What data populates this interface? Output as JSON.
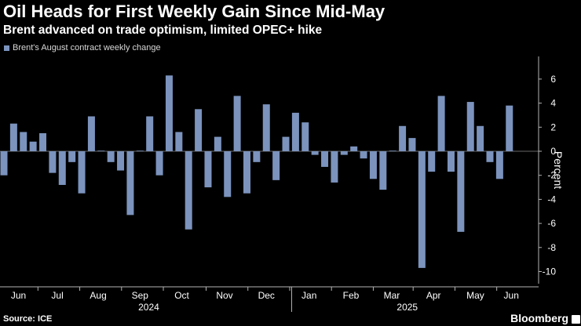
{
  "chart_data": {
    "type": "bar",
    "title": "Oil Heads for First Weekly Gain Since Mid-May",
    "subtitle": "Brent advanced on trade optimism, limited OPEC+ hike",
    "series": [
      {
        "name": "Brent's August contract weekly change",
        "color": "#7b93bd",
        "values": [
          -2.0,
          2.3,
          1.6,
          0.8,
          1.5,
          -1.8,
          -2.8,
          -0.9,
          -3.5,
          2.9,
          0.05,
          -0.9,
          -1.6,
          -5.3,
          0.05,
          2.9,
          -2.0,
          6.3,
          1.6,
          -6.5,
          3.5,
          -3.0,
          1.2,
          -3.8,
          4.6,
          -3.5,
          -0.9,
          3.9,
          -2.4,
          1.2,
          3.2,
          2.4,
          -0.3,
          -1.3,
          -2.6,
          -0.3,
          0.4,
          -0.6,
          -2.3,
          -3.2,
          0.05,
          2.1,
          1.1,
          -9.7,
          -1.7,
          4.6,
          -1.7,
          -6.7,
          4.1,
          2.1,
          -0.9,
          -2.3,
          3.8
        ]
      }
    ],
    "xlabel": "",
    "ylabel": "Percent",
    "ylim": [
      -11,
      8
    ],
    "yticks": [
      "6",
      "4",
      "2",
      "0",
      "-2",
      "-4",
      "-6",
      "-8",
      "-10"
    ],
    "ytick_values": [
      6,
      4,
      2,
      0,
      -2,
      -4,
      -6,
      -8,
      -10
    ],
    "month_labels": [
      {
        "label": "Jun",
        "week": 1.5
      },
      {
        "label": "Jul",
        "week": 5.5
      },
      {
        "label": "Aug",
        "week": 9.7
      },
      {
        "label": "Sep",
        "week": 14.0
      },
      {
        "label": "Oct",
        "week": 18.3
      },
      {
        "label": "Nov",
        "week": 22.7
      },
      {
        "label": "Dec",
        "week": 27.0
      },
      {
        "label": "Jan",
        "week": 31.4
      },
      {
        "label": "Feb",
        "week": 35.7
      },
      {
        "label": "Mar",
        "week": 39.9
      },
      {
        "label": "Apr",
        "week": 44.2
      },
      {
        "label": "May",
        "week": 48.5
      },
      {
        "label": "Jun",
        "week": 52.2
      }
    ],
    "month_ticks": [
      3.5,
      7.8,
      12.1,
      16.4,
      20.8,
      25.1,
      29.4,
      33.7,
      38.0,
      42.1,
      46.4,
      50.7
    ],
    "years": [
      {
        "label": "2024",
        "week": 14.9
      },
      {
        "label": "2025",
        "week": 41.5
      }
    ],
    "year_divider": 29.6,
    "grid": false,
    "legend": "top-left"
  },
  "footer": {
    "source": "Source: ICE",
    "brand": "Bloomberg"
  },
  "colors": {
    "background": "#000000",
    "bar": "#7b93bd",
    "axis": "#b4b4b4",
    "zero_line": "#8c8c8c",
    "text": "#ffffff"
  }
}
